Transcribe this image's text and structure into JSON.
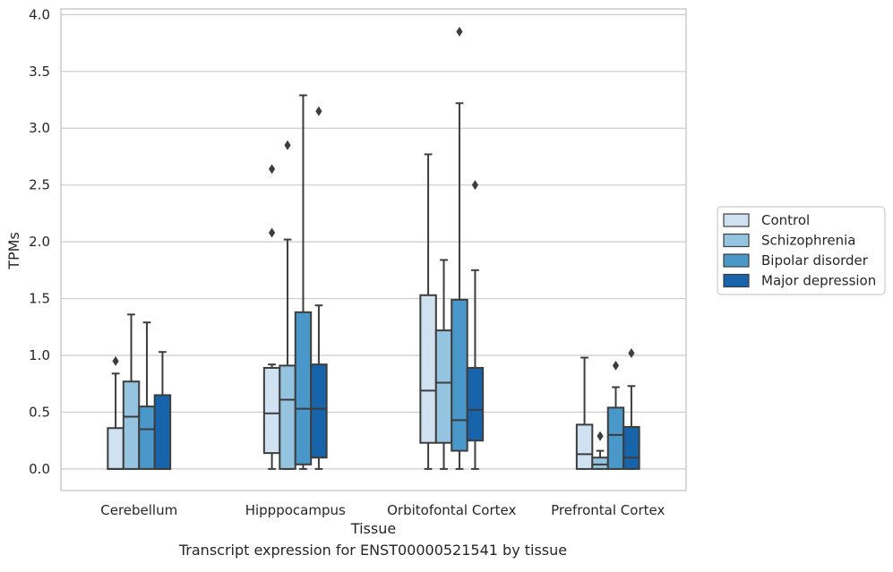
{
  "caption": "Transcript expression for ENST00000521541 by tissue",
  "chart_data": {
    "type": "box",
    "xlabel": "Tissue",
    "ylabel": "TPMs",
    "ylim": [
      -0.19,
      4.05
    ],
    "yticks": [
      "0.0",
      "0.5",
      "1.0",
      "1.5",
      "2.0",
      "2.5",
      "3.0",
      "3.5",
      "4.0"
    ],
    "grid": true,
    "legend_position": "right",
    "categories": [
      "Cerebellum",
      "Hipppocampus",
      "Orbitofontal Cortex",
      "Prefrontal Cortex"
    ],
    "series": [
      {
        "name": "Control",
        "color": "#d0e1f2",
        "boxes": [
          {
            "min": 0.0,
            "q1": 0.0,
            "median": 0.0,
            "q3": 0.36,
            "max": 0.84,
            "outliers": [
              0.95
            ]
          },
          {
            "min": 0.0,
            "q1": 0.14,
            "median": 0.49,
            "q3": 0.89,
            "max": 0.92,
            "outliers": [
              2.08,
              2.64
            ]
          },
          {
            "min": 0.0,
            "q1": 0.23,
            "median": 0.69,
            "q3": 1.53,
            "max": 2.77,
            "outliers": []
          },
          {
            "min": 0.0,
            "q1": 0.0,
            "median": 0.13,
            "q3": 0.39,
            "max": 0.98,
            "outliers": []
          }
        ]
      },
      {
        "name": "Schizophrenia",
        "color": "#94c4df",
        "boxes": [
          {
            "min": 0.0,
            "q1": 0.0,
            "median": 0.46,
            "q3": 0.77,
            "max": 1.36,
            "outliers": []
          },
          {
            "min": 0.0,
            "q1": 0.0,
            "median": 0.61,
            "q3": 0.91,
            "max": 2.02,
            "outliers": [
              2.85
            ]
          },
          {
            "min": 0.0,
            "q1": 0.23,
            "median": 0.76,
            "q3": 1.22,
            "max": 1.84,
            "outliers": []
          },
          {
            "min": 0.0,
            "q1": 0.0,
            "median": 0.04,
            "q3": 0.1,
            "max": 0.16,
            "outliers": [
              0.29
            ]
          }
        ]
      },
      {
        "name": "Bipolar disorder",
        "color": "#4a98c9",
        "boxes": [
          {
            "min": 0.0,
            "q1": 0.0,
            "median": 0.35,
            "q3": 0.55,
            "max": 1.29,
            "outliers": []
          },
          {
            "min": 0.0,
            "q1": 0.04,
            "median": 0.53,
            "q3": 1.38,
            "max": 3.29,
            "outliers": []
          },
          {
            "min": 0.0,
            "q1": 0.16,
            "median": 0.43,
            "q3": 1.49,
            "max": 3.22,
            "outliers": [
              3.85
            ]
          },
          {
            "min": 0.0,
            "q1": 0.0,
            "median": 0.3,
            "q3": 0.54,
            "max": 0.72,
            "outliers": [
              0.91
            ]
          }
        ]
      },
      {
        "name": "Major depression",
        "color": "#1764ab",
        "boxes": [
          {
            "min": 0.0,
            "q1": 0.0,
            "median": 0.0,
            "q3": 0.65,
            "max": 1.03,
            "outliers": []
          },
          {
            "min": 0.0,
            "q1": 0.1,
            "median": 0.53,
            "q3": 0.92,
            "max": 1.44,
            "outliers": [
              3.15
            ]
          },
          {
            "min": 0.0,
            "q1": 0.25,
            "median": 0.52,
            "q3": 0.89,
            "max": 1.75,
            "outliers": [
              2.5
            ]
          },
          {
            "min": 0.0,
            "q1": 0.0,
            "median": 0.1,
            "q3": 0.37,
            "max": 0.73,
            "outliers": [
              1.02
            ]
          }
        ]
      }
    ]
  }
}
